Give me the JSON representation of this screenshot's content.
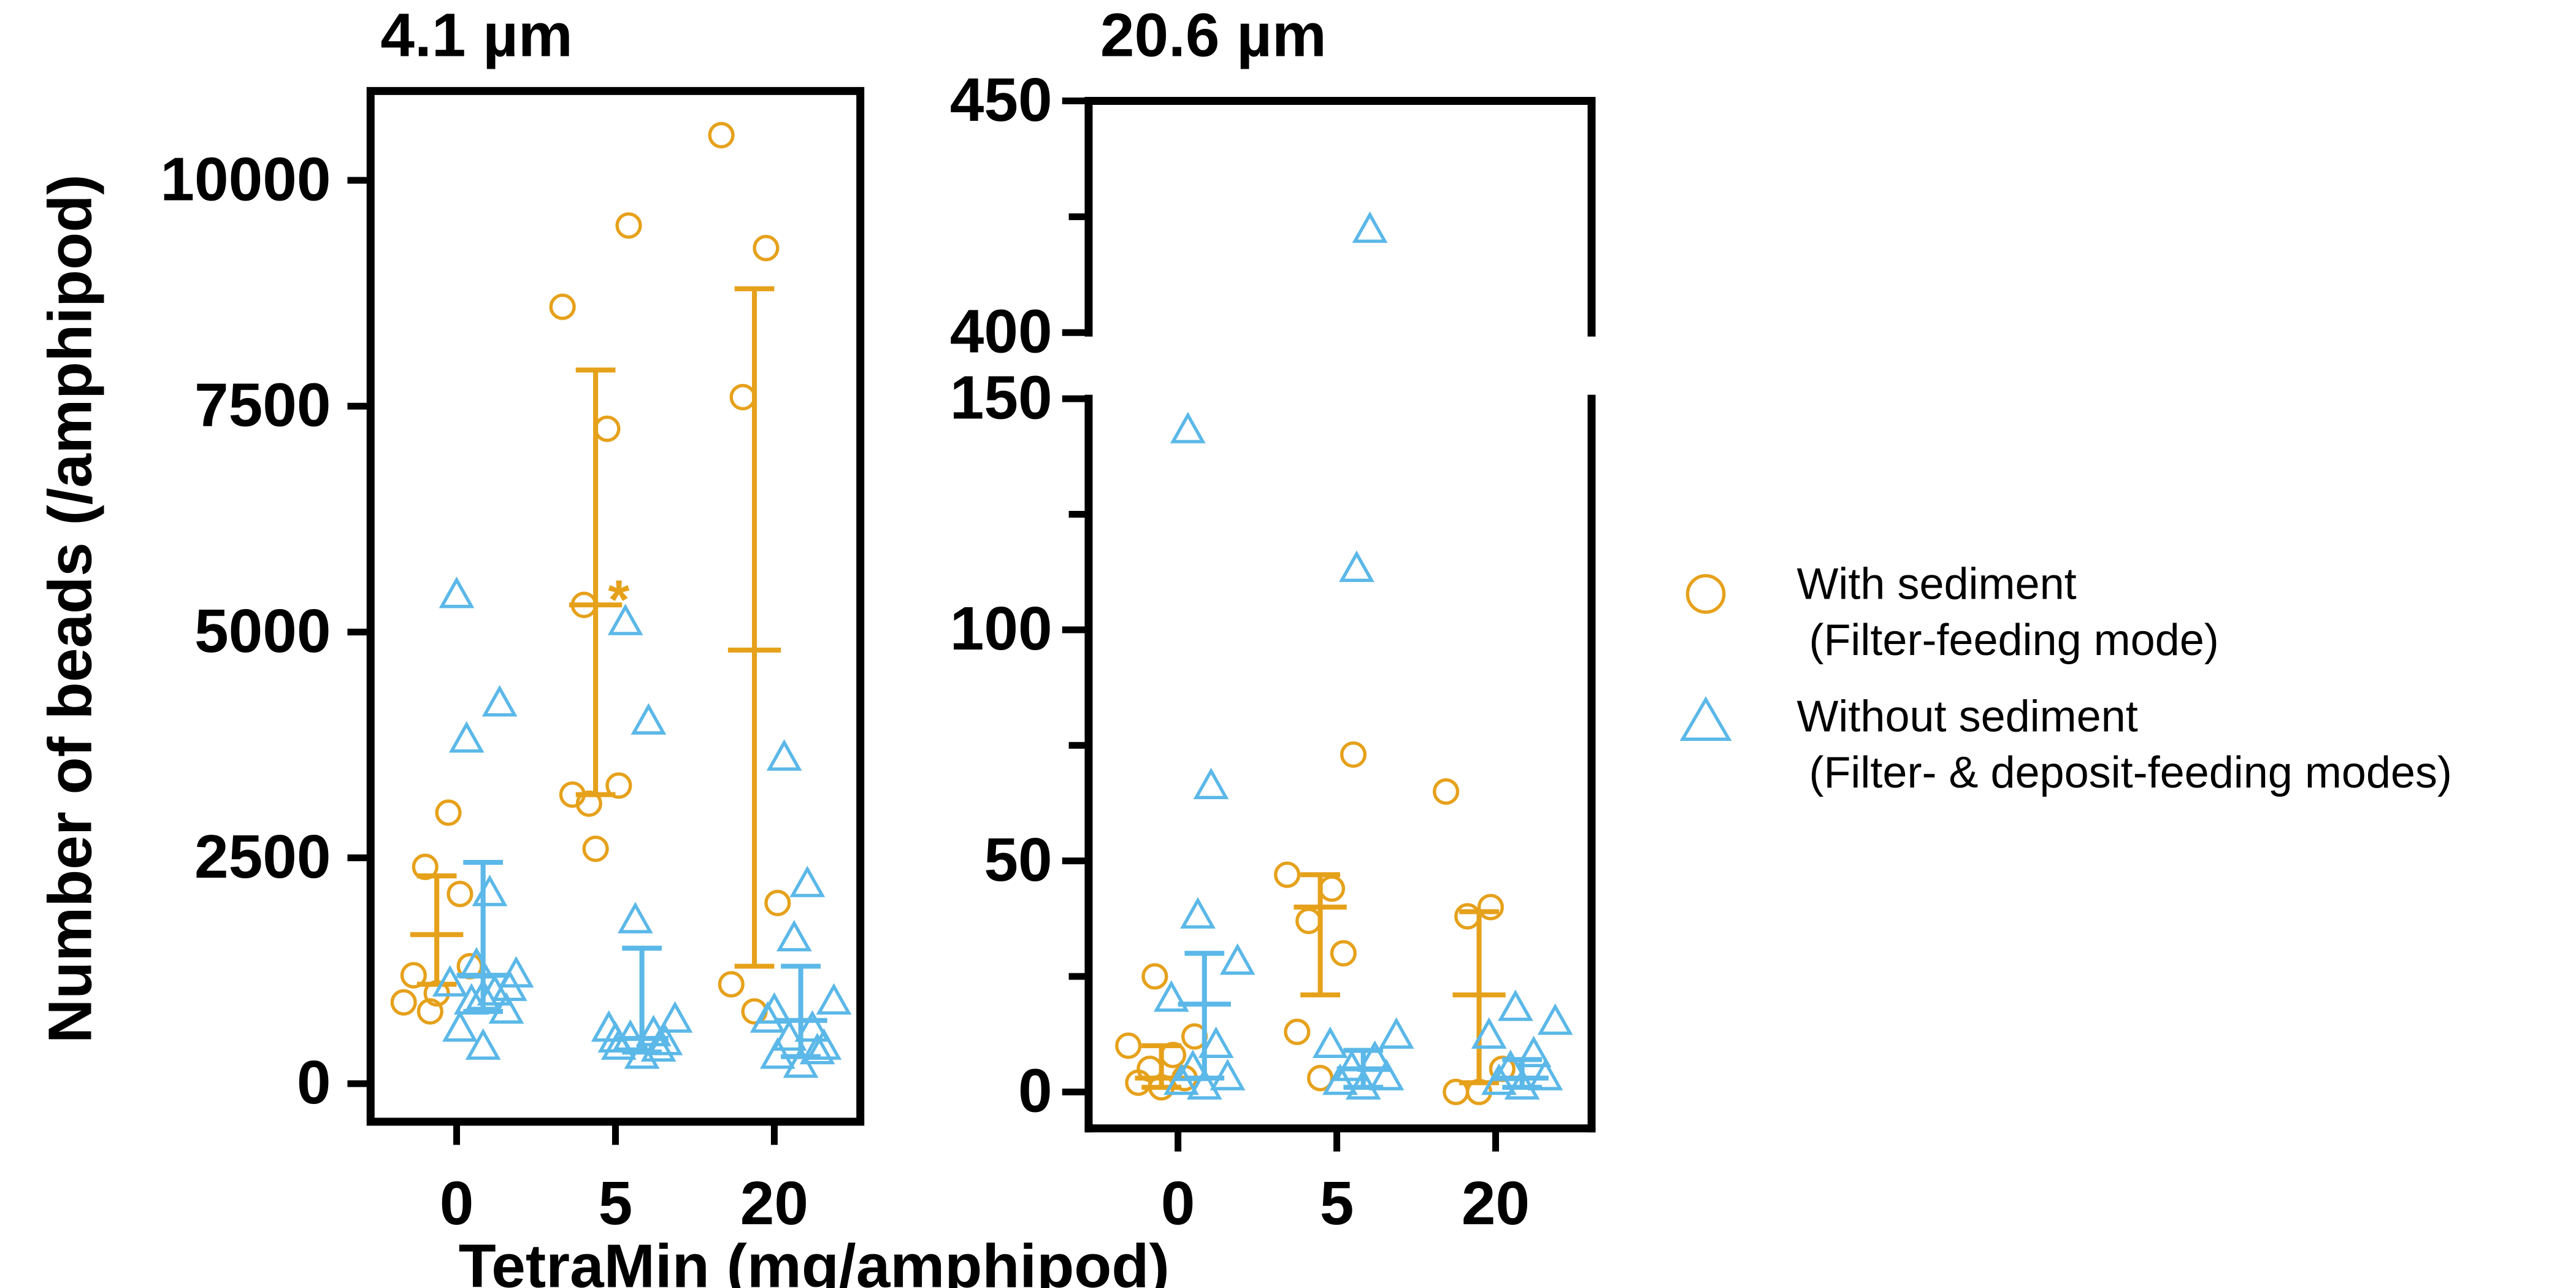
{
  "colors": {
    "with_sediment": "#E6A11B",
    "without_sediment": "#5BB8E8",
    "axis": "#000000"
  },
  "chart_data": [
    {
      "type": "scatter",
      "panel": "left",
      "title": "4.1 µm",
      "xlabel": "TetraMin (mg/amphipod)",
      "ylabel": "Number of beads (/amphipod)",
      "categories": [
        "0",
        "5",
        "20"
      ],
      "ylim": [
        0,
        11000
      ],
      "yticks": [
        0,
        2500,
        5000,
        7500,
        10000
      ],
      "ytick_labels": [
        "0",
        "2500",
        "5000",
        "7500",
        "10000"
      ],
      "annotations": [
        {
          "text": "*",
          "category": "5",
          "series": "With sediment",
          "y": 5700
        }
      ],
      "series": [
        {
          "name": "With sediment\n (Filter-feeding mode)",
          "marker": "circle",
          "points": [
            [
              1000,
              1200,
              2100,
              2400,
              3000,
              900,
              1300,
              800
            ],
            [
              2600,
              3200,
              3300,
              5300,
              7250,
              8600,
              9500,
              3100
            ],
            [
              800,
              1100,
              2000,
              7600,
              9250,
              10500
            ]
          ],
          "mean": [
            1650,
            5300,
            4800
          ],
          "err_low": [
            1100,
            3200,
            1300
          ],
          "err_high": [
            2300,
            7900,
            8800
          ]
        },
        {
          "name": "Without sediment\n (Filter- & deposit-feeding modes)",
          "marker": "triangle",
          "points": [
            [
              400,
              600,
              800,
              900,
              1000,
              1100,
              1200,
              1300,
              2100,
              3800,
              4200,
              5400,
              1050,
              950
            ],
            [
              300,
              400,
              450,
              500,
              550,
              600,
              700,
              1800,
              4000,
              5100,
              380,
              480
            ],
            [
              200,
              300,
              400,
              500,
              600,
              700,
              900,
              1600,
              2200,
              3600,
              350,
              800
            ]
          ],
          "mean": [
            1200,
            500,
            700
          ],
          "err_low": [
            800,
            350,
            300
          ],
          "err_high": [
            2450,
            1500,
            1300
          ]
        }
      ]
    },
    {
      "type": "scatter",
      "panel": "right",
      "title": "20.6 µm",
      "xlabel": "TetraMin (mg/amphipod)",
      "categories": [
        "0",
        "5",
        "20"
      ],
      "y_break": [
        150,
        400
      ],
      "ylim": [
        0,
        450
      ],
      "yticks": [
        0,
        50,
        100,
        150,
        400,
        450
      ],
      "ytick_labels": [
        "0",
        "50",
        "100",
        "150",
        "400",
        "450"
      ],
      "series": [
        {
          "name": "With sediment\n (Filter-feeding mode)",
          "marker": "circle",
          "points": [
            [
              1,
              2,
              3,
              5,
              8,
              10,
              12,
              25
            ],
            [
              3,
              13,
              30,
              37,
              44,
              47,
              73
            ],
            [
              0,
              0,
              5,
              38,
              40,
              65
            ]
          ],
          "mean": [
            3,
            40,
            21
          ],
          "err_low": [
            1,
            21,
            2
          ],
          "err_high": [
            10,
            47,
            39
          ]
        },
        {
          "name": "Without sediment\n (Filter- & deposit-feeding modes)",
          "marker": "triangle",
          "points": [
            [
              1,
              2,
              3,
              5,
              10,
              20,
              28,
              38,
              66,
              143
            ],
            [
              1,
              2,
              3,
              5,
              7,
              10,
              12,
              113,
              422
            ],
            [
              1,
              2,
              3,
              5,
              8,
              12,
              15,
              18
            ]
          ],
          "mean": [
            19,
            5,
            3
          ],
          "err_low": [
            3,
            1,
            1
          ],
          "err_high": [
            30,
            9,
            7
          ]
        }
      ]
    }
  ],
  "legend": [
    {
      "label_line1": "With sediment",
      "label_line2": " (Filter-feeding mode)",
      "marker": "circle",
      "color_key": "with_sediment"
    },
    {
      "label_line1": "Without sediment",
      "label_line2": " (Filter- & deposit-feeding modes)",
      "marker": "triangle",
      "color_key": "without_sediment"
    }
  ]
}
